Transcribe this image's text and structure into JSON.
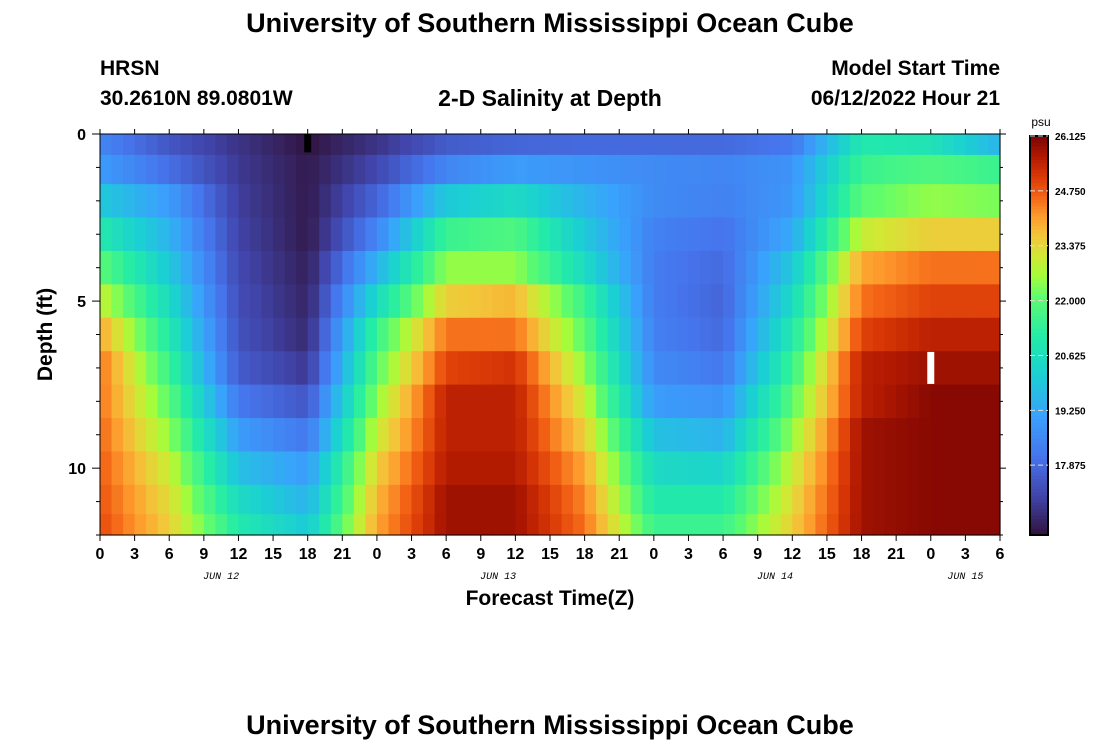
{
  "header": {
    "title": "University of Southern Mississippi Ocean Cube",
    "station": "HRSN",
    "coords": "30.2610N  89.0801W",
    "plot_title": "2-D Salinity at Depth",
    "model_start_label": "Model Start Time",
    "model_start_value": "06/12/2022 Hour 21"
  },
  "footer": {
    "title": "University of Southern Mississippi Ocean Cube"
  },
  "chart_data": {
    "type": "heatmap",
    "title": "2-D Salinity at Depth",
    "xlabel": "Forecast Time(Z)",
    "ylabel": "Depth (ft)",
    "x_tick_labels": [
      "0",
      "3",
      "6",
      "9",
      "12",
      "15",
      "18",
      "21",
      "0",
      "3",
      "6",
      "9",
      "12",
      "15",
      "18",
      "21",
      "0",
      "3",
      "6",
      "9",
      "12",
      "15",
      "18",
      "21",
      "0",
      "3",
      "6"
    ],
    "date_labels": [
      {
        "label": "JUN 12",
        "tick_index": 3.5
      },
      {
        "label": "JUN 13",
        "tick_index": 11.5
      },
      {
        "label": "JUN 14",
        "tick_index": 19.5
      },
      {
        "label": "JUN 15",
        "tick_index": 25
      }
    ],
    "y_tick_labels": [
      "0",
      "5",
      "10"
    ],
    "ylim": [
      0,
      12
    ],
    "x_range_hours": [
      0,
      78
    ],
    "colorbar": {
      "unit": "psu",
      "min": 16.125,
      "max": 26.125,
      "ticks": [
        "26.125",
        "24.750",
        "23.375",
        "22.000",
        "20.625",
        "19.250",
        "17.875"
      ]
    },
    "depth_levels_ft": [
      0.25,
      1,
      2,
      3,
      4,
      5,
      6,
      7,
      8,
      9,
      10,
      11,
      11.75
    ],
    "time_hours": [
      0,
      6,
      12,
      18,
      24,
      30,
      36,
      42,
      48,
      54,
      60,
      66,
      72,
      78
    ],
    "salinity_psu": [
      [
        18.5,
        17.5,
        16.8,
        16.2,
        16.8,
        17.6,
        17.8,
        17.9,
        17.9,
        17.9,
        18.2,
        21.0,
        20.8,
        19.5
      ],
      [
        19.0,
        18.0,
        16.9,
        16.3,
        17.2,
        18.5,
        19.0,
        18.8,
        18.6,
        18.5,
        18.8,
        21.5,
        21.8,
        21.5
      ],
      [
        20.0,
        19.0,
        17.0,
        16.3,
        17.8,
        20.0,
        20.5,
        19.5,
        18.6,
        18.4,
        18.9,
        22.0,
        22.5,
        22.3
      ],
      [
        21.0,
        19.5,
        17.1,
        16.3,
        18.5,
        21.5,
        21.8,
        20.0,
        18.4,
        18.1,
        19.3,
        23.0,
        23.5,
        23.5
      ],
      [
        22.0,
        20.0,
        17.2,
        16.4,
        19.5,
        22.5,
        22.5,
        20.5,
        18.3,
        17.9,
        20.0,
        24.0,
        24.5,
        24.5
      ],
      [
        23.0,
        20.5,
        17.3,
        16.5,
        20.5,
        23.5,
        23.8,
        21.5,
        18.3,
        17.8,
        20.5,
        24.5,
        25.0,
        25.0
      ],
      [
        24.0,
        21.0,
        17.4,
        16.6,
        21.5,
        24.5,
        24.5,
        22.0,
        18.4,
        17.9,
        21.0,
        25.0,
        25.5,
        25.5
      ],
      [
        24.5,
        21.5,
        17.6,
        16.9,
        22.0,
        25.0,
        25.2,
        22.5,
        18.6,
        18.2,
        21.5,
        25.5,
        25.8,
        25.8
      ],
      [
        24.5,
        22.0,
        18.2,
        17.5,
        22.5,
        25.5,
        25.5,
        23.0,
        19.0,
        18.8,
        22.0,
        25.5,
        26.0,
        26.0
      ],
      [
        24.6,
        22.5,
        19.0,
        18.2,
        23.0,
        25.5,
        25.5,
        23.5,
        19.8,
        19.5,
        22.5,
        25.8,
        26.0,
        26.0
      ],
      [
        24.7,
        23.0,
        19.8,
        19.0,
        23.5,
        25.6,
        25.6,
        24.0,
        20.5,
        20.3,
        23.0,
        25.8,
        26.0,
        26.0
      ],
      [
        24.8,
        23.3,
        20.5,
        19.5,
        23.8,
        25.8,
        25.8,
        24.3,
        21.0,
        21.0,
        23.3,
        25.8,
        26.0,
        26.0
      ],
      [
        24.9,
        23.5,
        21.0,
        20.0,
        24.0,
        25.8,
        25.8,
        24.5,
        21.5,
        21.5,
        23.5,
        25.8,
        26.0,
        26.0
      ]
    ],
    "markers": [
      {
        "color": "#000000",
        "time_hour": 18,
        "depth_ft": 0.25
      },
      {
        "color": "#ffffff",
        "time_hour": 72,
        "depth_ft": 7
      }
    ]
  }
}
